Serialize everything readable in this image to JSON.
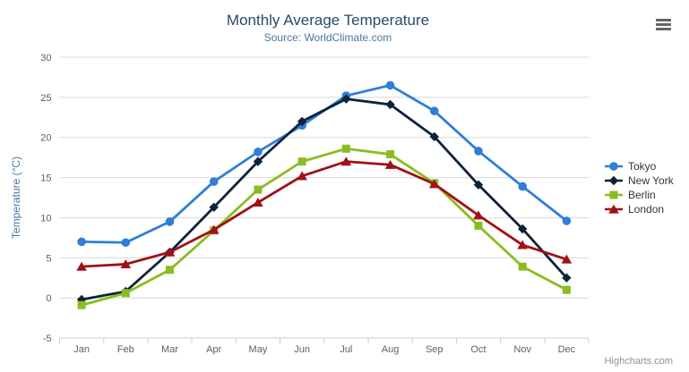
{
  "header": {
    "title": "Monthly Average Temperature",
    "subtitle": "Source: WorldClimate.com"
  },
  "credits": "Highcharts.com",
  "icons": {
    "menu": "hamburger-icon"
  },
  "theme": {
    "title_color": "#274b6d",
    "subtitle_color": "#4d759e",
    "axis_label_color": "#606060",
    "axis_title_color": "#4d759e",
    "grid_color": "#d8d8d8",
    "axis_line_color": "#c0d0e0",
    "legend_text_color": "#333333",
    "credits_color": "#909090",
    "menu_icon_color": "#666666"
  },
  "chart_data": {
    "type": "line",
    "title": "Monthly Average Temperature",
    "subtitle": "Source: WorldClimate.com",
    "categories": [
      "Jan",
      "Feb",
      "Mar",
      "Apr",
      "May",
      "Jun",
      "Jul",
      "Aug",
      "Sep",
      "Oct",
      "Nov",
      "Dec"
    ],
    "series": [
      {
        "name": "Tokyo",
        "color": "#2f7ed8",
        "marker": "circle",
        "values": [
          7.0,
          6.9,
          9.5,
          14.5,
          18.2,
          21.5,
          25.2,
          26.5,
          23.3,
          18.3,
          13.9,
          9.6
        ]
      },
      {
        "name": "New York",
        "color": "#0d233a",
        "marker": "diamond",
        "values": [
          -0.2,
          0.8,
          5.7,
          11.3,
          17.0,
          22.0,
          24.8,
          24.1,
          20.1,
          14.1,
          8.6,
          2.5
        ]
      },
      {
        "name": "Berlin",
        "color": "#8bbc21",
        "marker": "square",
        "values": [
          -0.9,
          0.6,
          3.5,
          8.4,
          13.5,
          17.0,
          18.6,
          17.9,
          14.3,
          9.0,
          3.9,
          1.0
        ]
      },
      {
        "name": "London",
        "color": "#a01016",
        "marker": "triangle",
        "values": [
          3.9,
          4.2,
          5.7,
          8.5,
          11.9,
          15.2,
          17.0,
          16.6,
          14.2,
          10.3,
          6.6,
          4.8
        ]
      }
    ],
    "xlabel": "",
    "ylabel": "Temperature (°C)",
    "ylim": [
      -5,
      30
    ],
    "ytick": 5,
    "grid": true,
    "legend_position": "right"
  }
}
